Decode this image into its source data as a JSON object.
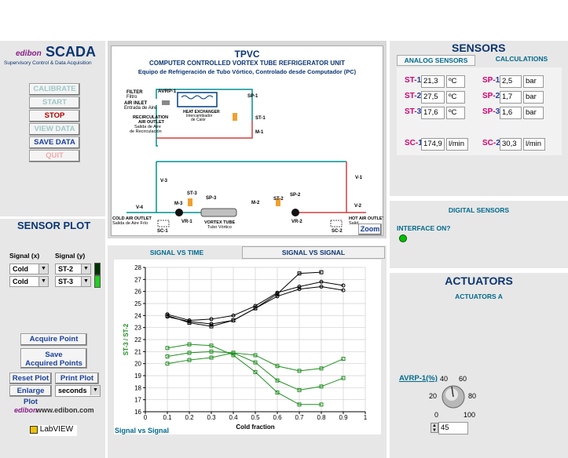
{
  "brand": {
    "logo": "edibon",
    "app_name": "SCADA",
    "subtitle": "Supervisory Control & Data Acquisition",
    "website": "www.edibon.com",
    "labview": "LabVIEW"
  },
  "controls": {
    "calibrate": "CALIBRATE",
    "start": "START",
    "stop": "STOP",
    "view_data": "VIEW DATA",
    "save_data": "SAVE DATA",
    "quit": "QUIT"
  },
  "diagram": {
    "title": "TPVC",
    "subtitle_en": "COMPUTER CONTROLLED VORTEX TUBE REFRIGERATOR UNIT",
    "subtitle_es": "Equipo de Refrigeración de Tubo Vórtico, Controlado desde Computador (PC)",
    "labels": {
      "avrp1": "AVRP-1",
      "filter": "FILTER",
      "filter_es": "Filtro",
      "air_inlet": "AIR INLET",
      "air_inlet_es": "Entrada de Aire",
      "heat_exchanger": "HEAT EXCHANGER",
      "heat_exchanger_es1": "Intercambiador",
      "heat_exchanger_es2": "de Calor",
      "recirculation1": "RECIRCULATION",
      "recirculation2": "AIR OUTLET",
      "recirculation_es1": "Salida de Aire",
      "recirculation_es2": "de Recirculación",
      "sp1": "SP-1",
      "st1": "ST-1",
      "m1": "M-1",
      "v3": "V-3",
      "v1": "V-1",
      "v4": "V-4",
      "v2": "V-2",
      "st3": "ST-3",
      "sp3": "SP-3",
      "m3": "M-3",
      "m2": "M-2",
      "st2": "ST-2",
      "sp2": "SP-2",
      "vr1": "VR-1",
      "vr2": "VR-2",
      "sc1": "SC-1",
      "sc2": "SC-2",
      "cold_outlet": "COLD AIR OUTLET",
      "cold_outlet_es": "Salida de Aire Frío",
      "vortex": "VORTEX TUBE",
      "vortex_es": "Tubo Vórtico",
      "hot_outlet": "HOT AIR OUTLET",
      "hot_outlet_es": "Salid"
    },
    "zoom": "Zoom"
  },
  "sensors": {
    "header": "SENSORS",
    "tabs": [
      "ANALOG SENSORS",
      "CALCULATIONS"
    ],
    "analog": [
      {
        "prefix": "ST-",
        "num": "1",
        "value": "21,3",
        "unit": "ºC"
      },
      {
        "prefix": "ST-",
        "num": "2",
        "value": "27,5",
        "unit": "ºC"
      },
      {
        "prefix": "ST-",
        "num": "3",
        "value": "17,6",
        "unit": "ºC"
      },
      {
        "prefix": "SP-",
        "num": "1",
        "value": "2,5",
        "unit": "bar"
      },
      {
        "prefix": "SP-",
        "num": "2",
        "value": "1,7",
        "unit": "bar"
      },
      {
        "prefix": "SP-",
        "num": "3",
        "value": "1,6",
        "unit": "bar"
      },
      {
        "prefix": "SC-",
        "num": "1",
        "value": "174,9",
        "unit": "l/min"
      },
      {
        "prefix": "SC-",
        "num": "2",
        "value": "30,3",
        "unit": "l/min"
      }
    ],
    "digital_header": "DIGITAL SENSORS",
    "interface_label": "INTERFACE ON?",
    "interface_color": "#00c000"
  },
  "actuators": {
    "header": "ACTUATORS",
    "sub": "ACTUATORS A",
    "avrp_label_prefix": "AVRP-",
    "avrp_label_suffix": "1(%)",
    "dial_ticks": [
      "0",
      "20",
      "40",
      "60",
      "80",
      "100"
    ],
    "value": "45"
  },
  "sensor_plot": {
    "header": "SENSOR PLOT",
    "signal_x_label": "Signal (x)",
    "signal_y_label": "Signal (y)",
    "x_kind_1": "Cold",
    "x_kind_2": "Cold",
    "y_sig_1": "ST-2",
    "y_sig_2": "ST-3",
    "acquire": "Acquire Point",
    "save_points_1": "Save",
    "save_points_2": "Acquired Points",
    "reset": "Reset Plot",
    "print": "Print Plot",
    "enlarge": "Enlarge Plot",
    "unit": "seconds"
  },
  "plot_tabs": [
    "SIGNAL VS TIME",
    "SIGNAL VS SIGNAL"
  ],
  "plot_caption": "Signal vs Signal",
  "chart_data": {
    "type": "line",
    "xlabel": "Cold fraction",
    "ylabel": "ST-3 / ST-2",
    "xlim": [
      0,
      1
    ],
    "ylim": [
      16,
      28
    ],
    "x_ticks": [
      "0",
      "0.1",
      "0.2",
      "0.3",
      "0.4",
      "0.5",
      "0.6",
      "0.7",
      "0.8",
      "0.9",
      "1"
    ],
    "y_ticks": [
      "16",
      "17",
      "18",
      "19",
      "20",
      "21",
      "22",
      "23",
      "24",
      "25",
      "26",
      "27",
      "28"
    ],
    "series": [
      {
        "color": "#000000",
        "marker": "square",
        "x": [
          0.1,
          0.2,
          0.3,
          0.4,
          0.5,
          0.6,
          0.7,
          0.8
        ],
        "values": [
          24.0,
          23.4,
          23.1,
          23.6,
          24.6,
          25.8,
          27.5,
          27.6
        ]
      },
      {
        "color": "#000000",
        "marker": "circle",
        "x": [
          0.1,
          0.2,
          0.3,
          0.4,
          0.5,
          0.6,
          0.7,
          0.8,
          0.9
        ],
        "values": [
          24.1,
          23.6,
          23.7,
          24.0,
          24.8,
          25.9,
          26.4,
          26.8,
          26.5
        ]
      },
      {
        "color": "#000000",
        "marker": "circle",
        "x": [
          0.1,
          0.2,
          0.3,
          0.4,
          0.5,
          0.6,
          0.7,
          0.8,
          0.9
        ],
        "values": [
          23.9,
          23.5,
          23.3,
          23.6,
          24.6,
          25.6,
          26.2,
          26.4,
          26.1
        ]
      },
      {
        "color": "#1f8f1f",
        "marker": "square",
        "x": [
          0.1,
          0.2,
          0.3,
          0.4,
          0.5,
          0.6,
          0.7,
          0.8
        ],
        "values": [
          21.3,
          21.6,
          21.5,
          20.7,
          19.3,
          17.6,
          16.6,
          16.6
        ]
      },
      {
        "color": "#1f8f1f",
        "marker": "square",
        "x": [
          0.1,
          0.2,
          0.3,
          0.4,
          0.5,
          0.6,
          0.7,
          0.8,
          0.9
        ],
        "values": [
          20.6,
          20.9,
          21.0,
          20.9,
          20.1,
          18.6,
          17.8,
          18.1,
          18.8
        ]
      },
      {
        "color": "#1f8f1f",
        "marker": "square",
        "x": [
          0.1,
          0.2,
          0.3,
          0.4,
          0.5,
          0.6,
          0.7,
          0.8,
          0.9
        ],
        "values": [
          20.0,
          20.3,
          20.5,
          20.9,
          20.7,
          19.8,
          19.4,
          19.6,
          20.4
        ]
      }
    ]
  }
}
